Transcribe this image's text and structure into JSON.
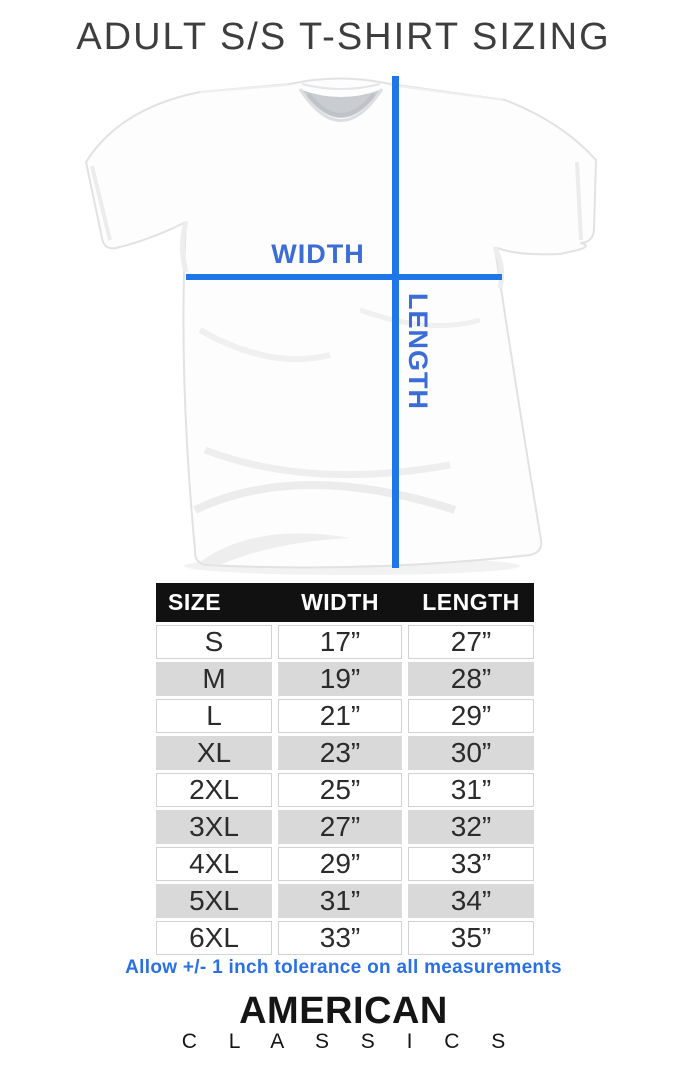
{
  "header": {
    "title": "ADULT S/S T-SHIRT SIZING"
  },
  "diagram": {
    "width_label": "WIDTH",
    "length_label": "LENGTH"
  },
  "size_table": {
    "columns": [
      "SIZE",
      "WIDTH",
      "LENGTH"
    ],
    "rows": [
      {
        "size": "S",
        "width": "17”",
        "length": "27”"
      },
      {
        "size": "M",
        "width": "19”",
        "length": "28”"
      },
      {
        "size": "L",
        "width": "21”",
        "length": "29”"
      },
      {
        "size": "XL",
        "width": "23”",
        "length": "30”"
      },
      {
        "size": "2XL",
        "width": "25”",
        "length": "31”"
      },
      {
        "size": "3XL",
        "width": "27”",
        "length": "32”"
      },
      {
        "size": "4XL",
        "width": "29”",
        "length": "33”"
      },
      {
        "size": "5XL",
        "width": "31”",
        "length": "34”"
      },
      {
        "size": "6XL",
        "width": "33”",
        "length": "35”"
      }
    ]
  },
  "note": "Allow +/- 1 inch tolerance on all measurements",
  "brand": {
    "name": "AMERICAN",
    "subname": "C L A S S I C S"
  },
  "colors": {
    "accent_blue": "#1e76e8",
    "label_blue": "#3c6cd6",
    "note_blue": "#2a70e4",
    "header_bg": "#111111",
    "row_alt": "#d9d9d9",
    "row_border": "#d2d2d2",
    "title_color": "#3e3e3e",
    "brand_color": "#151515"
  }
}
